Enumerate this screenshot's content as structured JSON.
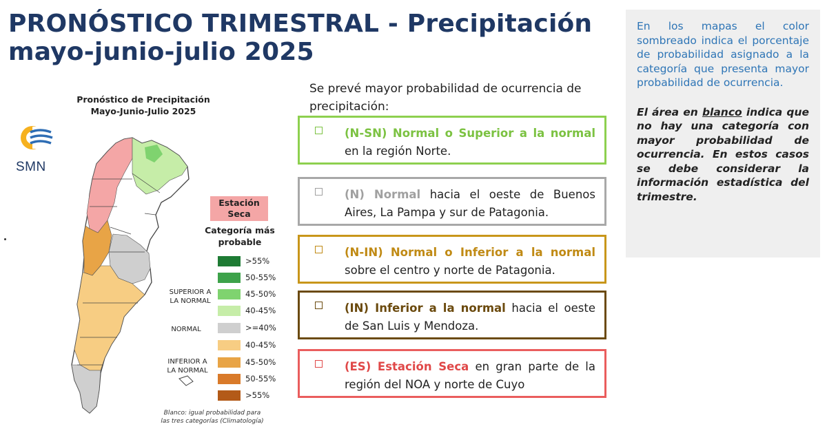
{
  "header": {
    "title_line1": "PRONÓSTICO TRIMESTRAL - Precipitación",
    "title_line2": "mayo-junio-julio 2025"
  },
  "map": {
    "title_line1": "Pronóstico de Precipitación",
    "title_line2": "Mayo-Junio-Julio 2025",
    "logo_text": "SMN",
    "seca_label_line1": "Estación",
    "seca_label_line2": "Seca",
    "legend_title_line1": "Categoría más",
    "legend_title_line2": "probable",
    "legend_items": [
      {
        "label": ">55%",
        "color": "#1e7b34"
      },
      {
        "label": "50-55%",
        "color": "#3da24a"
      },
      {
        "label": "45-50%",
        "color": "#7fd36f"
      },
      {
        "label": "40-45%",
        "color": "#c6eda8"
      },
      {
        "label": ">=40%",
        "color": "#cfcfcf"
      },
      {
        "label": "40-45%",
        "color": "#f7cd83"
      },
      {
        "label": "45-50%",
        "color": "#e8a446"
      },
      {
        "label": "50-55%",
        "color": "#d97a2a"
      },
      {
        "label": ">55%",
        "color": "#b35a18"
      }
    ],
    "group_superior_line1": "SUPERIOR A",
    "group_superior_line2": "LA NORMAL",
    "group_normal": "NORMAL",
    "group_inferior_line1": "INFERIOR A",
    "group_inferior_line2": "LA NORMAL",
    "note_line1": "Blanco: igual probabilidad para",
    "note_line2": "las tres categorías (Climatología)"
  },
  "forecast": {
    "intro": "Se prevé mayor probabilidad de ocurrencia de precipitación:",
    "categories": [
      {
        "highlight": "(N-SN) Normal o Superior a la normal",
        "rest": " en la región Norte.",
        "border": "#8dd04f",
        "text_color": "#7cc242"
      },
      {
        "highlight": "(N) Normal",
        "rest": " hacia el oeste de Buenos Aires, La Pampa y sur de Patagonia.",
        "border": "#a8a8a8",
        "text_color": "#a0a0a0"
      },
      {
        "highlight": "(N-IN) Normal o Inferior a la normal",
        "rest": " sobre el centro y norte de Patagonia.",
        "border": "#c8961a",
        "text_color": "#c08a14"
      },
      {
        "highlight": "(IN) Inferior a la normal",
        "rest": " hacia el oeste de San Luis y Mendoza.",
        "border": "#6b4a0e",
        "text_color": "#6b4a0e"
      },
      {
        "highlight": "(ES) Estación Seca",
        "rest": " en gran parte de la región del NOA y norte de Cuyo",
        "border": "#ea5d5d",
        "text_color": "#e04848"
      }
    ]
  },
  "info": {
    "text1": "En los mapas el color sombreado indica el porcentaje de probabilidad asignado a la categoría que presenta mayor probabilidad de ocurrencia.",
    "text2_before": "El área en ",
    "text2_underline": "blanco",
    "text2_after": " indica que no hay una categoría con mayor probabilidad de ocurrencia. En estos casos se debe considerar la información estadística del trimestre."
  }
}
